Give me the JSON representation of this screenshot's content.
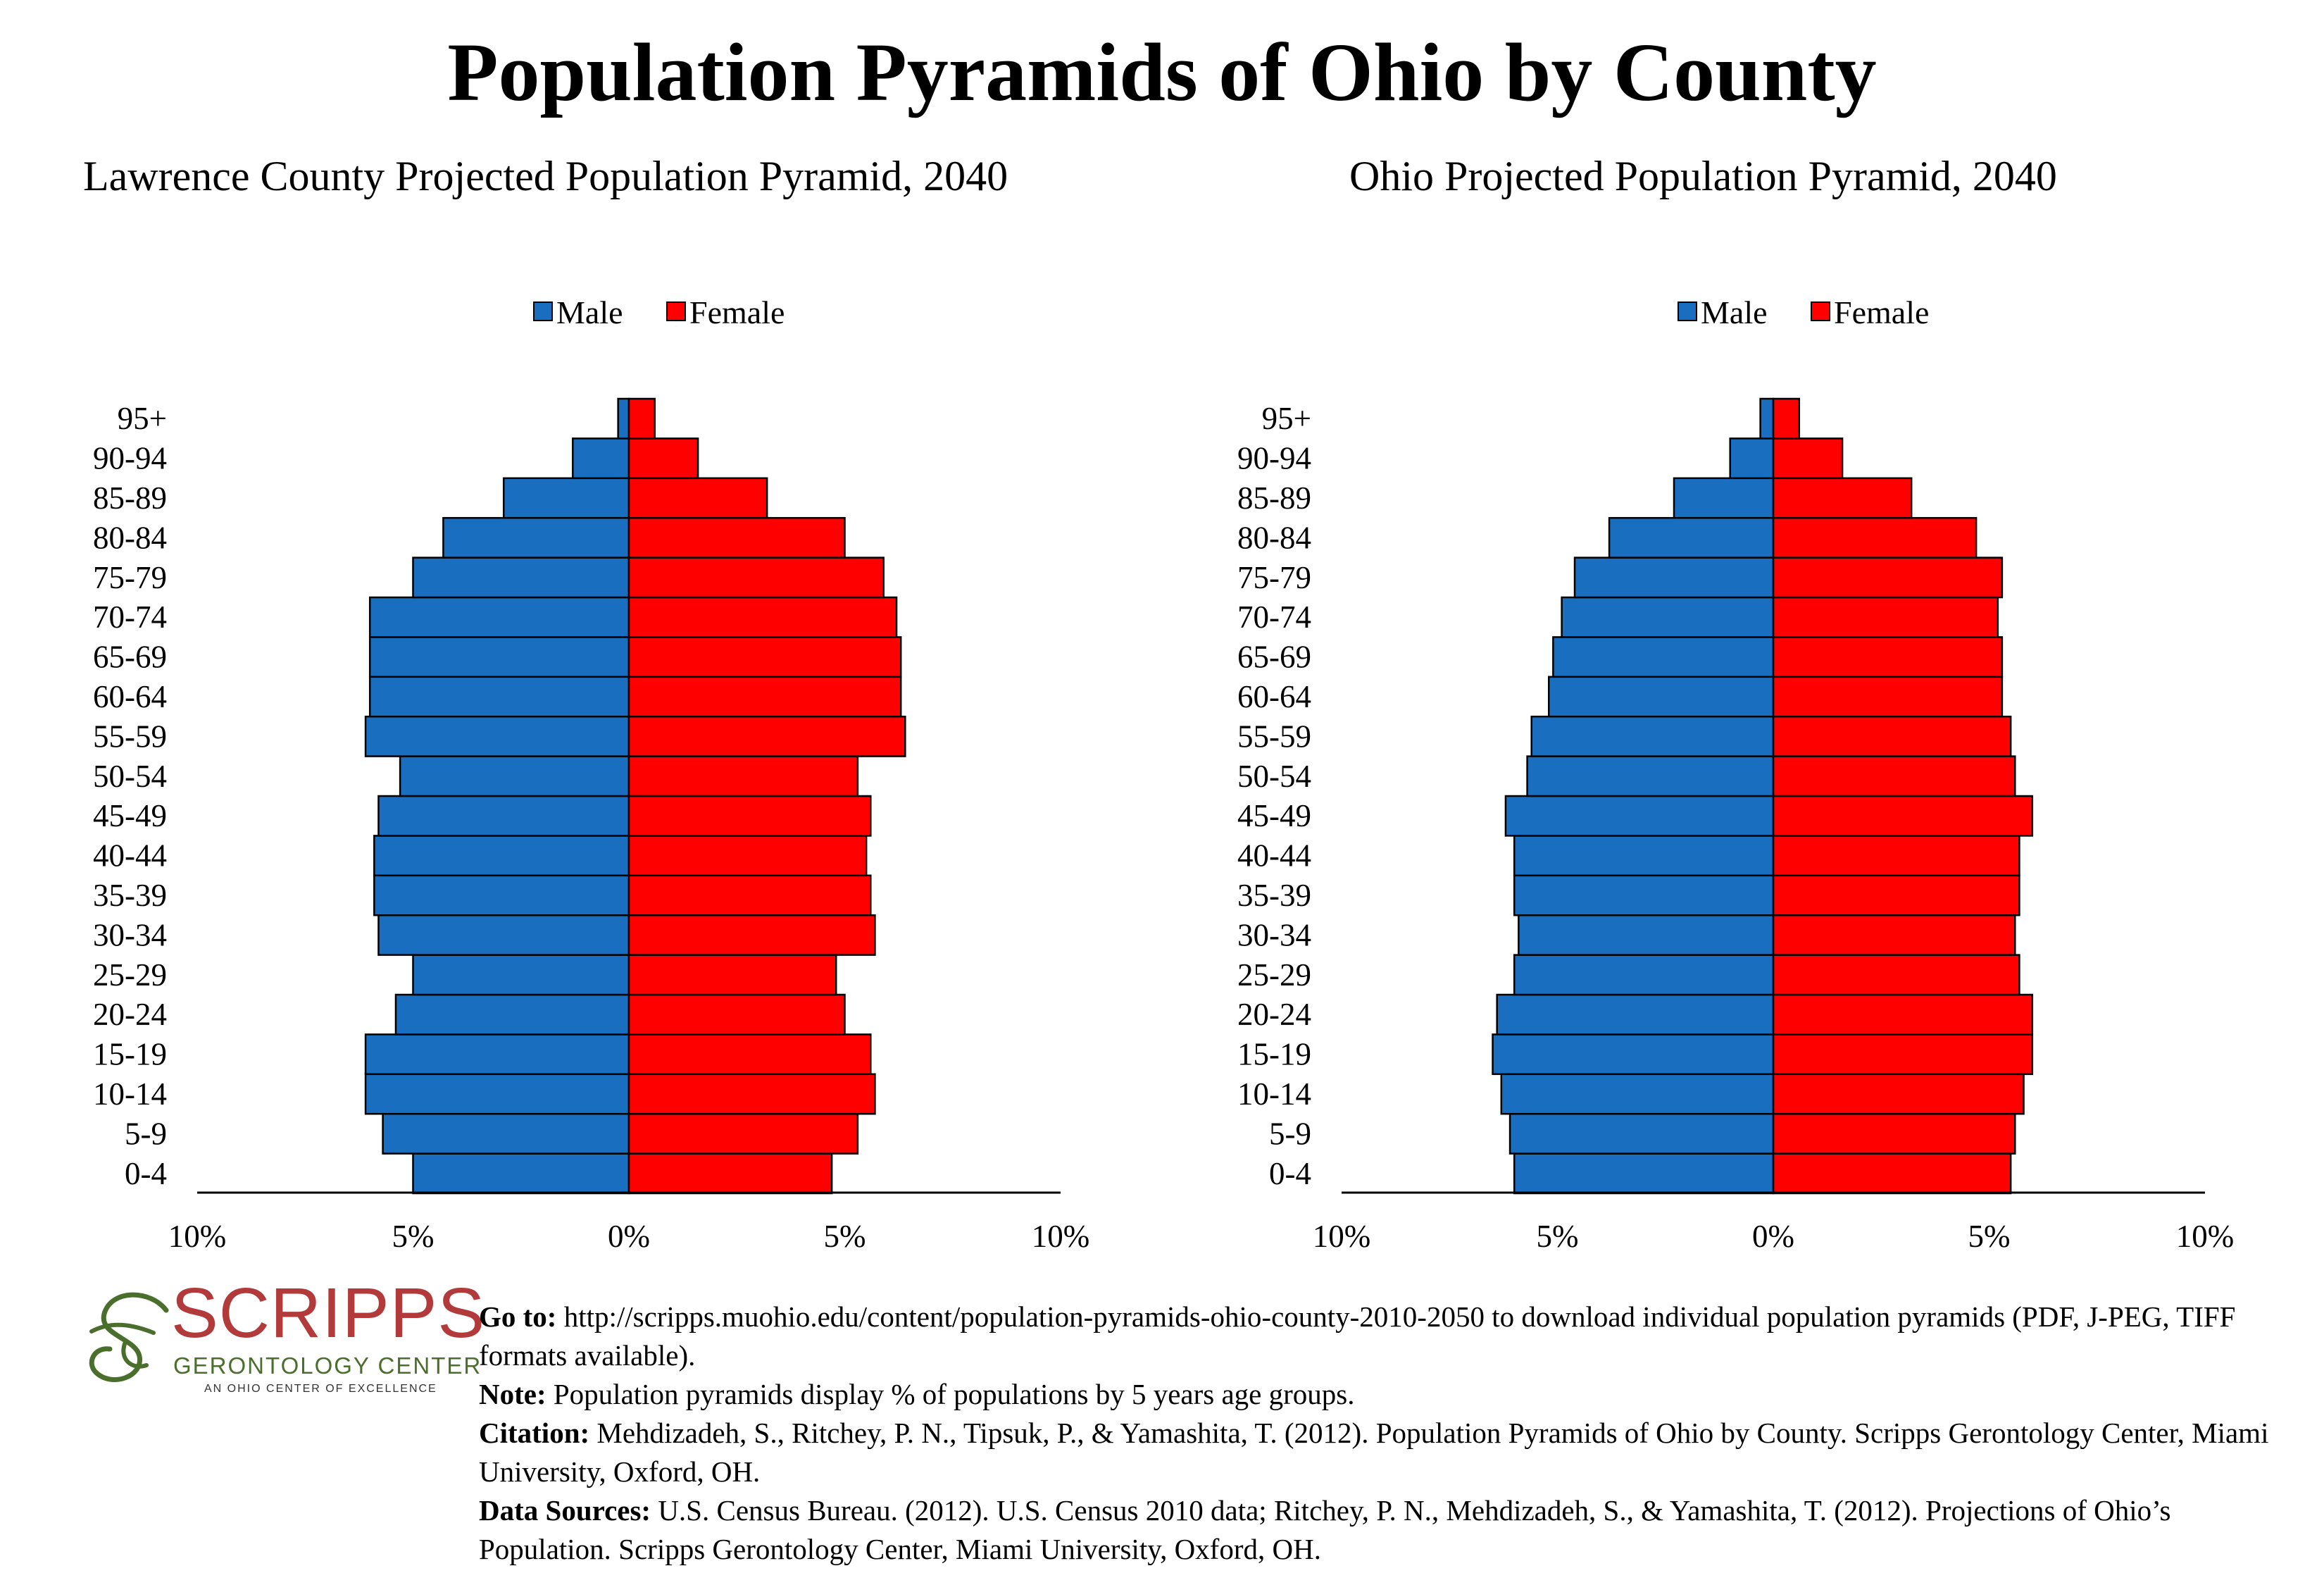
{
  "title": "Population Pyramids of Ohio by County",
  "colors": {
    "male": "#1a6ec0",
    "female": "#ff0000",
    "outline": "#000000"
  },
  "chart_data": [
    {
      "type": "bar",
      "orientation": "horizontal-pyramid",
      "title": "Lawrence County Projected Population Pyramid, 2040",
      "categories": [
        "0-4",
        "5-9",
        "10-14",
        "15-19",
        "20-24",
        "25-29",
        "30-34",
        "35-39",
        "40-44",
        "45-49",
        "50-54",
        "55-59",
        "60-64",
        "65-69",
        "70-74",
        "75-79",
        "80-84",
        "85-89",
        "90-94",
        "95+"
      ],
      "series": [
        {
          "name": "Male",
          "values": [
            5.0,
            5.7,
            6.1,
            6.1,
            5.4,
            5.0,
            5.8,
            5.9,
            5.9,
            5.8,
            5.3,
            6.1,
            6.0,
            6.0,
            6.0,
            5.0,
            4.3,
            2.9,
            1.3,
            0.25
          ]
        },
        {
          "name": "Female",
          "values": [
            4.7,
            5.3,
            5.7,
            5.6,
            5.0,
            4.8,
            5.7,
            5.6,
            5.5,
            5.6,
            5.3,
            6.4,
            6.3,
            6.3,
            6.2,
            5.9,
            5.0,
            3.2,
            1.6,
            0.6
          ]
        }
      ],
      "xlim": [
        -10,
        10
      ],
      "xticks": [
        "10%",
        "5%",
        "0%",
        "5%",
        "10%"
      ],
      "legend": "top-center"
    },
    {
      "type": "bar",
      "orientation": "horizontal-pyramid",
      "title": "Ohio Projected Population Pyramid, 2040",
      "categories": [
        "0-4",
        "5-9",
        "10-14",
        "15-19",
        "20-24",
        "25-29",
        "30-34",
        "35-39",
        "40-44",
        "45-49",
        "50-54",
        "55-59",
        "60-64",
        "65-69",
        "70-74",
        "75-79",
        "80-84",
        "85-89",
        "90-94",
        "95+"
      ],
      "series": [
        {
          "name": "Male",
          "values": [
            6.0,
            6.1,
            6.3,
            6.5,
            6.4,
            6.0,
            5.9,
            6.0,
            6.0,
            6.2,
            5.7,
            5.6,
            5.2,
            5.1,
            4.9,
            4.6,
            3.8,
            2.3,
            1.0,
            0.3
          ]
        },
        {
          "name": "Female",
          "values": [
            5.5,
            5.6,
            5.8,
            6.0,
            6.0,
            5.7,
            5.6,
            5.7,
            5.7,
            6.0,
            5.6,
            5.5,
            5.3,
            5.3,
            5.2,
            5.3,
            4.7,
            3.2,
            1.6,
            0.6
          ]
        }
      ],
      "xlim": [
        -10,
        10
      ],
      "xticks": [
        "10%",
        "5%",
        "0%",
        "5%",
        "10%"
      ],
      "legend": "top-center"
    }
  ],
  "logo": {
    "wordmark": "SCRIPPS",
    "line1": "GERONTOLOGY CENTER",
    "line2": "AN OHIO CENTER OF EXCELLENCE"
  },
  "notes": {
    "goto_label": "Go to:",
    "goto_text": " http://scripps.muohio.edu/content/population-pyramids-ohio-county-2010-2050 to download individual population pyramids (PDF, J-PEG, TIFF formats available).",
    "note_label": "Note:",
    "note_text": " Population pyramids display % of populations by 5 years age groups.",
    "citation_label": "Citation:",
    "citation_text": " Mehdizadeh, S., Ritchey, P. N., Tipsuk, P., & Yamashita, T. (2012). Population Pyramids of Ohio by County. Scripps Gerontology Center, Miami University, Oxford, OH.",
    "sources_label": "Data Sources:",
    "sources_text": " U.S. Census Bureau. (2012). U.S. Census 2010 data; Ritchey, P. N., Mehdizadeh, S., & Yamashita, T. (2012). Projections of Ohio’s Population. Scripps Gerontology Center, Miami University, Oxford, OH."
  }
}
